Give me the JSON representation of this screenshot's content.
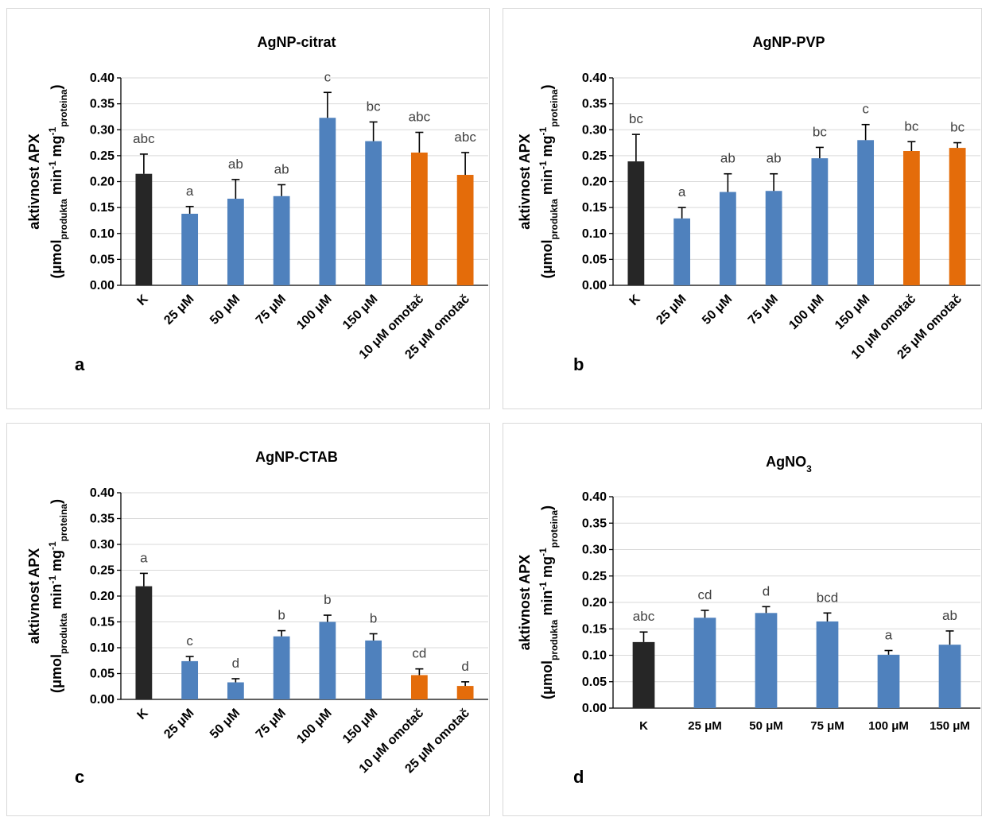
{
  "colors": {
    "control": "#262626",
    "treatment": "#4f81bd",
    "coating": "#e46c0a"
  },
  "ylabel": {
    "line1": "aktivnost APX",
    "prefix": "(μmol",
    "sub1": "produkta",
    "mid": " min",
    "sup1": "-1",
    "mid2": " mg",
    "sup2": "-1",
    "sub2": "proteina",
    "suffix": ")"
  },
  "chart_data": [
    {
      "type": "bar",
      "panel": "a",
      "title": "AgNP-citrat",
      "ylim": [
        0,
        0.4
      ],
      "yticks": [
        "0.00",
        "0.05",
        "0.10",
        "0.15",
        "0.20",
        "0.25",
        "0.30",
        "0.35",
        "0.40"
      ],
      "categories": [
        "K",
        "25 μM",
        "50 μM",
        "75 μM",
        "100 μM",
        "150 μM",
        "10 μM omotač",
        "25 μM omotač"
      ],
      "values": [
        0.215,
        0.138,
        0.167,
        0.172,
        0.323,
        0.278,
        0.256,
        0.213
      ],
      "errors": [
        0.038,
        0.014,
        0.037,
        0.022,
        0.049,
        0.037,
        0.039,
        0.043
      ],
      "significance": [
        "abc",
        "a",
        "ab",
        "ab",
        "c",
        "bc",
        "abc",
        "abc"
      ],
      "bar_colors": [
        "control",
        "treatment",
        "treatment",
        "treatment",
        "treatment",
        "treatment",
        "coating",
        "coating"
      ],
      "rotated_labels": true,
      "grid": true
    },
    {
      "type": "bar",
      "panel": "b",
      "title": "AgNP-PVP",
      "ylim": [
        0,
        0.4
      ],
      "yticks": [
        "0.00",
        "0.05",
        "0.10",
        "0.15",
        "0.20",
        "0.25",
        "0.30",
        "0.35",
        "0.40"
      ],
      "categories": [
        "K",
        "25 μM",
        "50 μM",
        "75 μM",
        "100 μM",
        "150 μM",
        "10 μM omotač",
        "25 μM omotač"
      ],
      "values": [
        0.239,
        0.129,
        0.18,
        0.182,
        0.245,
        0.28,
        0.259,
        0.265
      ],
      "errors": [
        0.052,
        0.021,
        0.035,
        0.033,
        0.021,
        0.03,
        0.018,
        0.01
      ],
      "significance": [
        "bc",
        "a",
        "ab",
        "ab",
        "bc",
        "c",
        "bc",
        "bc"
      ],
      "bar_colors": [
        "control",
        "treatment",
        "treatment",
        "treatment",
        "treatment",
        "treatment",
        "coating",
        "coating"
      ],
      "rotated_labels": true,
      "grid": true
    },
    {
      "type": "bar",
      "panel": "c",
      "title": "AgNP-CTAB",
      "ylim": [
        0,
        0.4
      ],
      "yticks": [
        "0.00",
        "0.05",
        "0.10",
        "0.15",
        "0.20",
        "0.25",
        "0.30",
        "0.35",
        "0.40"
      ],
      "categories": [
        "K",
        "25 μM",
        "50 μM",
        "75 μM",
        "100 μM",
        "150 μM",
        "10 μM omotač",
        "25 μM omotač"
      ],
      "values": [
        0.219,
        0.074,
        0.033,
        0.122,
        0.15,
        0.114,
        0.047,
        0.026
      ],
      "errors": [
        0.025,
        0.009,
        0.007,
        0.011,
        0.013,
        0.013,
        0.012,
        0.008
      ],
      "significance": [
        "a",
        "c",
        "d",
        "b",
        "b",
        "b",
        "cd",
        "d"
      ],
      "bar_colors": [
        "control",
        "treatment",
        "treatment",
        "treatment",
        "treatment",
        "treatment",
        "coating",
        "coating"
      ],
      "rotated_labels": true,
      "grid": true
    },
    {
      "type": "bar",
      "panel": "d",
      "title": "AgNO",
      "title_sub": "3",
      "ylim": [
        0,
        0.4
      ],
      "yticks": [
        "0.00",
        "0.05",
        "0.10",
        "0.15",
        "0.20",
        "0.25",
        "0.30",
        "0.35",
        "0.40"
      ],
      "categories": [
        "K",
        "25 μM",
        "50 μM",
        "75 μM",
        "100 μM",
        "150 μM"
      ],
      "values": [
        0.125,
        0.171,
        0.18,
        0.164,
        0.101,
        0.12
      ],
      "errors": [
        0.019,
        0.014,
        0.012,
        0.016,
        0.008,
        0.026
      ],
      "significance": [
        "abc",
        "cd",
        "d",
        "bcd",
        "a",
        "ab"
      ],
      "bar_colors": [
        "control",
        "treatment",
        "treatment",
        "treatment",
        "treatment",
        "treatment"
      ],
      "rotated_labels": false,
      "grid": true
    }
  ]
}
